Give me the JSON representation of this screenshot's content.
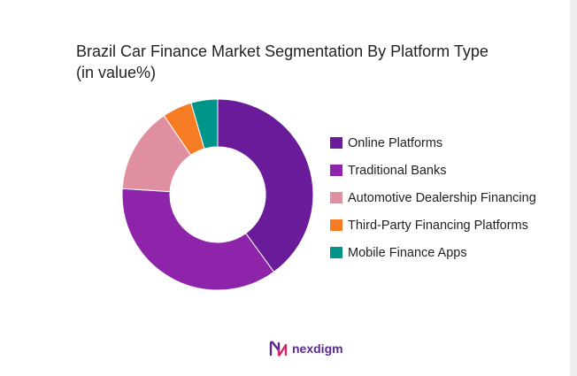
{
  "chart_data": {
    "type": "pie",
    "title": "Brazil Car Finance Market Segmentation By Platform Type\n(in value%)",
    "hole": 0.5,
    "legend_position": "right",
    "categories": [
      "Online Platforms",
      "Traditional Banks",
      "Automotive Dealership Financing",
      "Third-Party Financing Platforms",
      "Mobile Finance Apps"
    ],
    "values": [
      40,
      36,
      14.5,
      5,
      4.5
    ],
    "colors": [
      "#6a1b9a",
      "#8e24aa",
      "#e08fa0",
      "#f57c22",
      "#00958a"
    ]
  },
  "brand": {
    "name": "nexdigm"
  }
}
